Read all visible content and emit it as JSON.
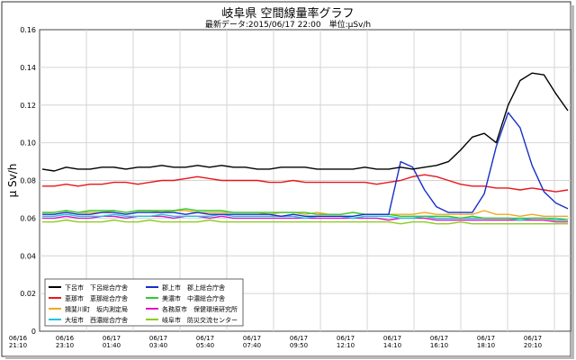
{
  "chart_data": {
    "type": "line",
    "title": "岐阜県 空間線量率グラフ",
    "subtitle": "最新データ:2015/06/17 22:00　単位:μSv/h",
    "ylabel": "μ Sv/h",
    "xlabel": "",
    "ylim": [
      0,
      0.16
    ],
    "yticks": [
      "0",
      "0.02",
      "0.04",
      "0.06",
      "0.08",
      "0.10",
      "0.12",
      "0.14",
      "0.16"
    ],
    "xticks": [
      {
        "date": "06/16",
        "time": "21:10"
      },
      {
        "date": "06/16",
        "time": "23:10"
      },
      {
        "date": "06/17",
        "time": "01:40"
      },
      {
        "date": "06/17",
        "time": "03:40"
      },
      {
        "date": "06/17",
        "time": "05:40"
      },
      {
        "date": "06/17",
        "time": "07:40"
      },
      {
        "date": "06/17",
        "time": "09:50"
      },
      {
        "date": "06/17",
        "time": "12:10"
      },
      {
        "date": "06/17",
        "time": "14:10"
      },
      {
        "date": "06/17",
        "time": "16:10"
      },
      {
        "date": "06/17",
        "time": "18:10"
      },
      {
        "date": "06/17",
        "time": "20:10"
      }
    ],
    "grid": true,
    "legend_placement": "bottom-left",
    "series": [
      {
        "name": "下呂市　下呂総合庁舎",
        "color": "#000000",
        "values": [
          0.086,
          0.085,
          0.087,
          0.086,
          0.086,
          0.087,
          0.087,
          0.086,
          0.087,
          0.087,
          0.088,
          0.087,
          0.087,
          0.088,
          0.087,
          0.088,
          0.087,
          0.087,
          0.086,
          0.086,
          0.087,
          0.087,
          0.087,
          0.086,
          0.086,
          0.086,
          0.086,
          0.087,
          0.086,
          0.086,
          0.087,
          0.086,
          0.087,
          0.088,
          0.09,
          0.096,
          0.103,
          0.105,
          0.1,
          0.12,
          0.133,
          0.137,
          0.136,
          0.126,
          0.117
        ]
      },
      {
        "name": "恵那市　恵那総合庁舎",
        "color": "#e8161b",
        "values": [
          0.077,
          0.077,
          0.078,
          0.077,
          0.078,
          0.078,
          0.079,
          0.079,
          0.078,
          0.079,
          0.08,
          0.08,
          0.081,
          0.082,
          0.081,
          0.08,
          0.08,
          0.08,
          0.08,
          0.079,
          0.079,
          0.08,
          0.079,
          0.079,
          0.079,
          0.079,
          0.079,
          0.079,
          0.078,
          0.079,
          0.08,
          0.082,
          0.083,
          0.082,
          0.08,
          0.078,
          0.077,
          0.077,
          0.076,
          0.076,
          0.075,
          0.076,
          0.075,
          0.074,
          0.075
        ]
      },
      {
        "name": "揖斐川町　坂内測定局",
        "color": "#f5a623",
        "values": [
          0.063,
          0.063,
          0.064,
          0.063,
          0.063,
          0.063,
          0.064,
          0.063,
          0.064,
          0.064,
          0.063,
          0.064,
          0.064,
          0.063,
          0.063,
          0.063,
          0.063,
          0.063,
          0.063,
          0.062,
          0.063,
          0.063,
          0.062,
          0.063,
          0.062,
          0.062,
          0.063,
          0.062,
          0.062,
          0.062,
          0.062,
          0.062,
          0.063,
          0.062,
          0.062,
          0.062,
          0.062,
          0.064,
          0.062,
          0.062,
          0.061,
          0.062,
          0.061,
          0.061,
          0.061
        ]
      },
      {
        "name": "大垣市　西濃総合庁舎",
        "color": "#1ec6e0",
        "values": [
          0.061,
          0.061,
          0.062,
          0.061,
          0.061,
          0.061,
          0.062,
          0.061,
          0.061,
          0.061,
          0.062,
          0.061,
          0.061,
          0.061,
          0.061,
          0.062,
          0.061,
          0.061,
          0.061,
          0.061,
          0.061,
          0.061,
          0.06,
          0.061,
          0.061,
          0.061,
          0.06,
          0.061,
          0.061,
          0.061,
          0.06,
          0.06,
          0.061,
          0.06,
          0.06,
          0.06,
          0.06,
          0.06,
          0.06,
          0.06,
          0.059,
          0.06,
          0.06,
          0.06,
          0.059
        ]
      },
      {
        "name": "郡上市　郡上総合庁舎",
        "color": "#1530c8",
        "values": [
          0.062,
          0.062,
          0.063,
          0.062,
          0.062,
          0.063,
          0.063,
          0.062,
          0.063,
          0.063,
          0.063,
          0.063,
          0.062,
          0.063,
          0.062,
          0.062,
          0.062,
          0.062,
          0.062,
          0.062,
          0.061,
          0.062,
          0.061,
          0.061,
          0.061,
          0.061,
          0.061,
          0.062,
          0.062,
          0.062,
          0.09,
          0.087,
          0.075,
          0.066,
          0.063,
          0.063,
          0.063,
          0.073,
          0.098,
          0.116,
          0.108,
          0.088,
          0.074,
          0.068,
          0.065
        ]
      },
      {
        "name": "美濃市　中濃総合庁舎",
        "color": "#2ecc2e",
        "values": [
          0.063,
          0.063,
          0.064,
          0.063,
          0.064,
          0.064,
          0.064,
          0.063,
          0.064,
          0.064,
          0.064,
          0.064,
          0.065,
          0.064,
          0.064,
          0.064,
          0.063,
          0.063,
          0.063,
          0.063,
          0.063,
          0.063,
          0.063,
          0.062,
          0.062,
          0.062,
          0.063,
          0.062,
          0.062,
          0.062,
          0.061,
          0.061,
          0.061,
          0.061,
          0.061,
          0.06,
          0.061,
          0.06,
          0.06,
          0.06,
          0.06,
          0.06,
          0.06,
          0.059,
          0.059
        ]
      },
      {
        "name": "各務原市　保健環境研究所",
        "color": "#e016c8",
        "values": [
          0.06,
          0.06,
          0.061,
          0.06,
          0.06,
          0.061,
          0.061,
          0.06,
          0.061,
          0.061,
          0.061,
          0.06,
          0.061,
          0.061,
          0.06,
          0.061,
          0.06,
          0.06,
          0.06,
          0.06,
          0.06,
          0.06,
          0.06,
          0.06,
          0.06,
          0.06,
          0.06,
          0.06,
          0.06,
          0.059,
          0.06,
          0.06,
          0.06,
          0.059,
          0.059,
          0.059,
          0.059,
          0.059,
          0.059,
          0.059,
          0.059,
          0.059,
          0.059,
          0.058,
          0.058
        ]
      },
      {
        "name": "岐阜市　防災交流センター",
        "color": "#8ccc1e",
        "values": [
          0.058,
          0.058,
          0.059,
          0.058,
          0.058,
          0.058,
          0.059,
          0.058,
          0.058,
          0.059,
          0.058,
          0.058,
          0.058,
          0.058,
          0.059,
          0.058,
          0.058,
          0.058,
          0.058,
          0.058,
          0.058,
          0.058,
          0.058,
          0.058,
          0.058,
          0.058,
          0.058,
          0.058,
          0.058,
          0.058,
          0.057,
          0.058,
          0.058,
          0.057,
          0.057,
          0.058,
          0.057,
          0.057,
          0.057,
          0.057,
          0.057,
          0.057,
          0.057,
          0.057,
          0.057
        ]
      }
    ]
  }
}
